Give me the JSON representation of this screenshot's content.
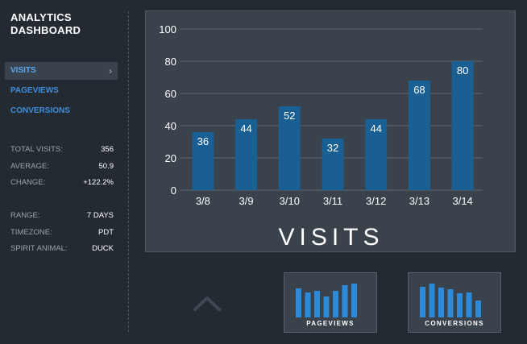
{
  "app": {
    "title_line1": "ANALYTICS",
    "title_line2": "DASHBOARD"
  },
  "sidebar": {
    "nav": [
      {
        "label": "VISITS",
        "active": true
      },
      {
        "label": "PAGEVIEWS",
        "active": false
      },
      {
        "label": "CONVERSIONS",
        "active": false
      }
    ],
    "stats": [
      {
        "label": "TOTAL VISITS:",
        "value": "356"
      },
      {
        "label": "AVERAGE:",
        "value": "50.9"
      },
      {
        "label": "CHANGE:",
        "value": "+122.2%"
      }
    ],
    "settings": [
      {
        "label": "RANGE:",
        "value": "7 DAYS"
      },
      {
        "label": "TIMEZONE:",
        "value": "PDT"
      },
      {
        "label": "SPIRIT ANIMAL:",
        "value": "DUCK"
      }
    ]
  },
  "chart_data": {
    "type": "bar",
    "title": "VISITS",
    "categories": [
      "3/8",
      "3/9",
      "3/10",
      "3/11",
      "3/12",
      "3/13",
      "3/14"
    ],
    "values": [
      36,
      44,
      52,
      32,
      44,
      68,
      80
    ],
    "ylim": [
      0,
      100
    ],
    "yticks": [
      0,
      20,
      40,
      60,
      80,
      100
    ],
    "grid": true,
    "bar_color": "#1a5f93",
    "grid_color": "#5f6871"
  },
  "mini_charts": [
    {
      "label": "PAGEVIEWS",
      "values": [
        36,
        31,
        33,
        26,
        33,
        40,
        42
      ],
      "color": "#2c8ad8"
    },
    {
      "label": "CONVERSIONS",
      "values": [
        38,
        42,
        37,
        35,
        30,
        31,
        21
      ],
      "color": "#2c8ad8"
    }
  ],
  "colors": {
    "accent": "#3d8fdc",
    "background": "#232a32",
    "panel": "#3a424b"
  }
}
